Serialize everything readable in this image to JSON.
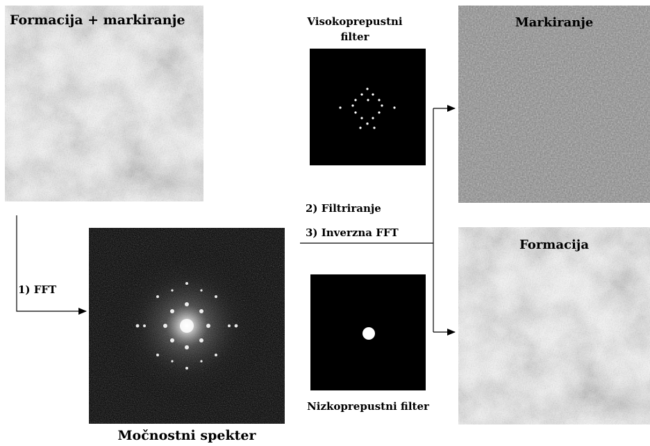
{
  "panels": {
    "input_title": "Formacija + markiranje",
    "spectrum_title": "Močnostni spekter",
    "highpass_title": "Visokoprepustni filter",
    "lowpass_title": "Nizkoprepustni filter",
    "marking_title": "Markiranje",
    "formation_title": "Formacija"
  },
  "steps": {
    "fft": "1) FFT",
    "filtering": "2) Filtriranje",
    "inverse_fft": "3) Inverzna FFT"
  },
  "colors": {
    "texture_gray": "#8a8a8a",
    "filter_background": "#000000",
    "filter_pass": "#ffffff",
    "arrow": "#000000"
  }
}
